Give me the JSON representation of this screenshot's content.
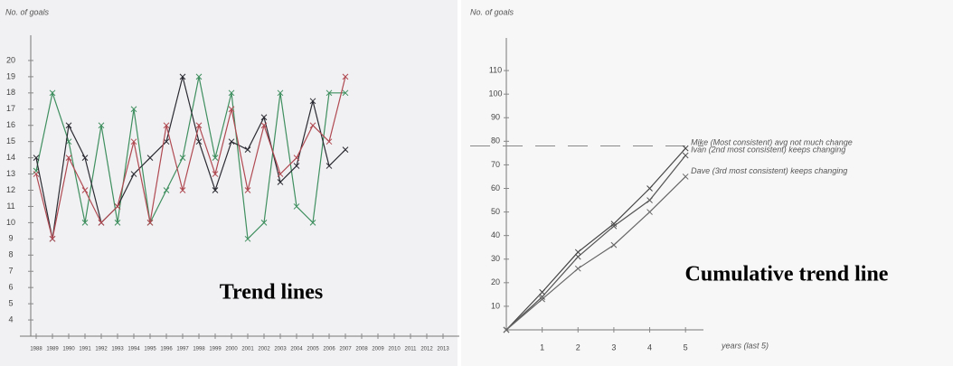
{
  "chart_data": [
    {
      "type": "line",
      "title": "Trend lines",
      "y_label": "No. of goals",
      "x": [
        1988,
        1989,
        1990,
        1991,
        1992,
        1993,
        1994,
        1995,
        1996,
        1997,
        1998,
        1999,
        2000,
        2001,
        2002,
        2003,
        2004,
        2005,
        2006,
        2007
      ],
      "series": [
        {
          "color": "#3f8f5f",
          "values": [
            13.2,
            18,
            15,
            10,
            16,
            10,
            17,
            10,
            12,
            14,
            19,
            14,
            18,
            9,
            10,
            18,
            11,
            10,
            18,
            18
          ]
        },
        {
          "color": "#2b2b33",
          "values": [
            14,
            9,
            16,
            14,
            10,
            11,
            13,
            14,
            15,
            19,
            15,
            12,
            15,
            14.5,
            16.5,
            12.5,
            13.5,
            17.5,
            13.5,
            14.5
          ]
        },
        {
          "color": "#b04a52",
          "values": [
            13,
            9,
            14,
            12,
            10,
            11,
            15,
            10,
            16,
            12,
            16,
            13,
            17,
            12,
            16,
            13,
            14,
            16,
            15,
            19
          ]
        }
      ],
      "xlim": [
        1987,
        2014
      ],
      "xticks": [
        1988,
        1989,
        1990,
        1991,
        1992,
        1993,
        1994,
        1995,
        1996,
        1997,
        1998,
        1999,
        2000,
        2001,
        2002,
        2003,
        2004,
        2005,
        2006,
        2007,
        2008,
        2009,
        2010,
        2011,
        2012,
        2013
      ],
      "ylim": [
        3,
        21
      ],
      "yticks": [
        4,
        5,
        6,
        7,
        8,
        9,
        10,
        11,
        12,
        13,
        14,
        15,
        16,
        17,
        18,
        19,
        20
      ]
    },
    {
      "type": "line",
      "title": "Cumulative trend line",
      "y_label": "No. of goals",
      "x_label": "years (last 5)",
      "x": [
        0,
        1,
        2,
        3,
        4,
        5
      ],
      "series": [
        {
          "name": "Mike (Most consistent) avg not much change",
          "color": "#444444",
          "values": [
            0,
            16,
            33,
            45,
            60,
            77
          ]
        },
        {
          "name": "Ivan (2nd most consistent) keeps changing",
          "color": "#555555",
          "values": [
            0,
            14,
            31,
            44,
            55,
            74
          ]
        },
        {
          "name": "Dave (3rd most consistent) keeps changing",
          "color": "#666666",
          "values": [
            0,
            13,
            26,
            36,
            50,
            65
          ]
        }
      ],
      "reference_line": 78,
      "xlim": [
        0,
        5.5
      ],
      "xticks": [
        1,
        2,
        3,
        4,
        5
      ],
      "ylim": [
        0,
        120
      ],
      "yticks": [
        10,
        20,
        30,
        40,
        50,
        60,
        70,
        80,
        90,
        100,
        110
      ]
    }
  ]
}
